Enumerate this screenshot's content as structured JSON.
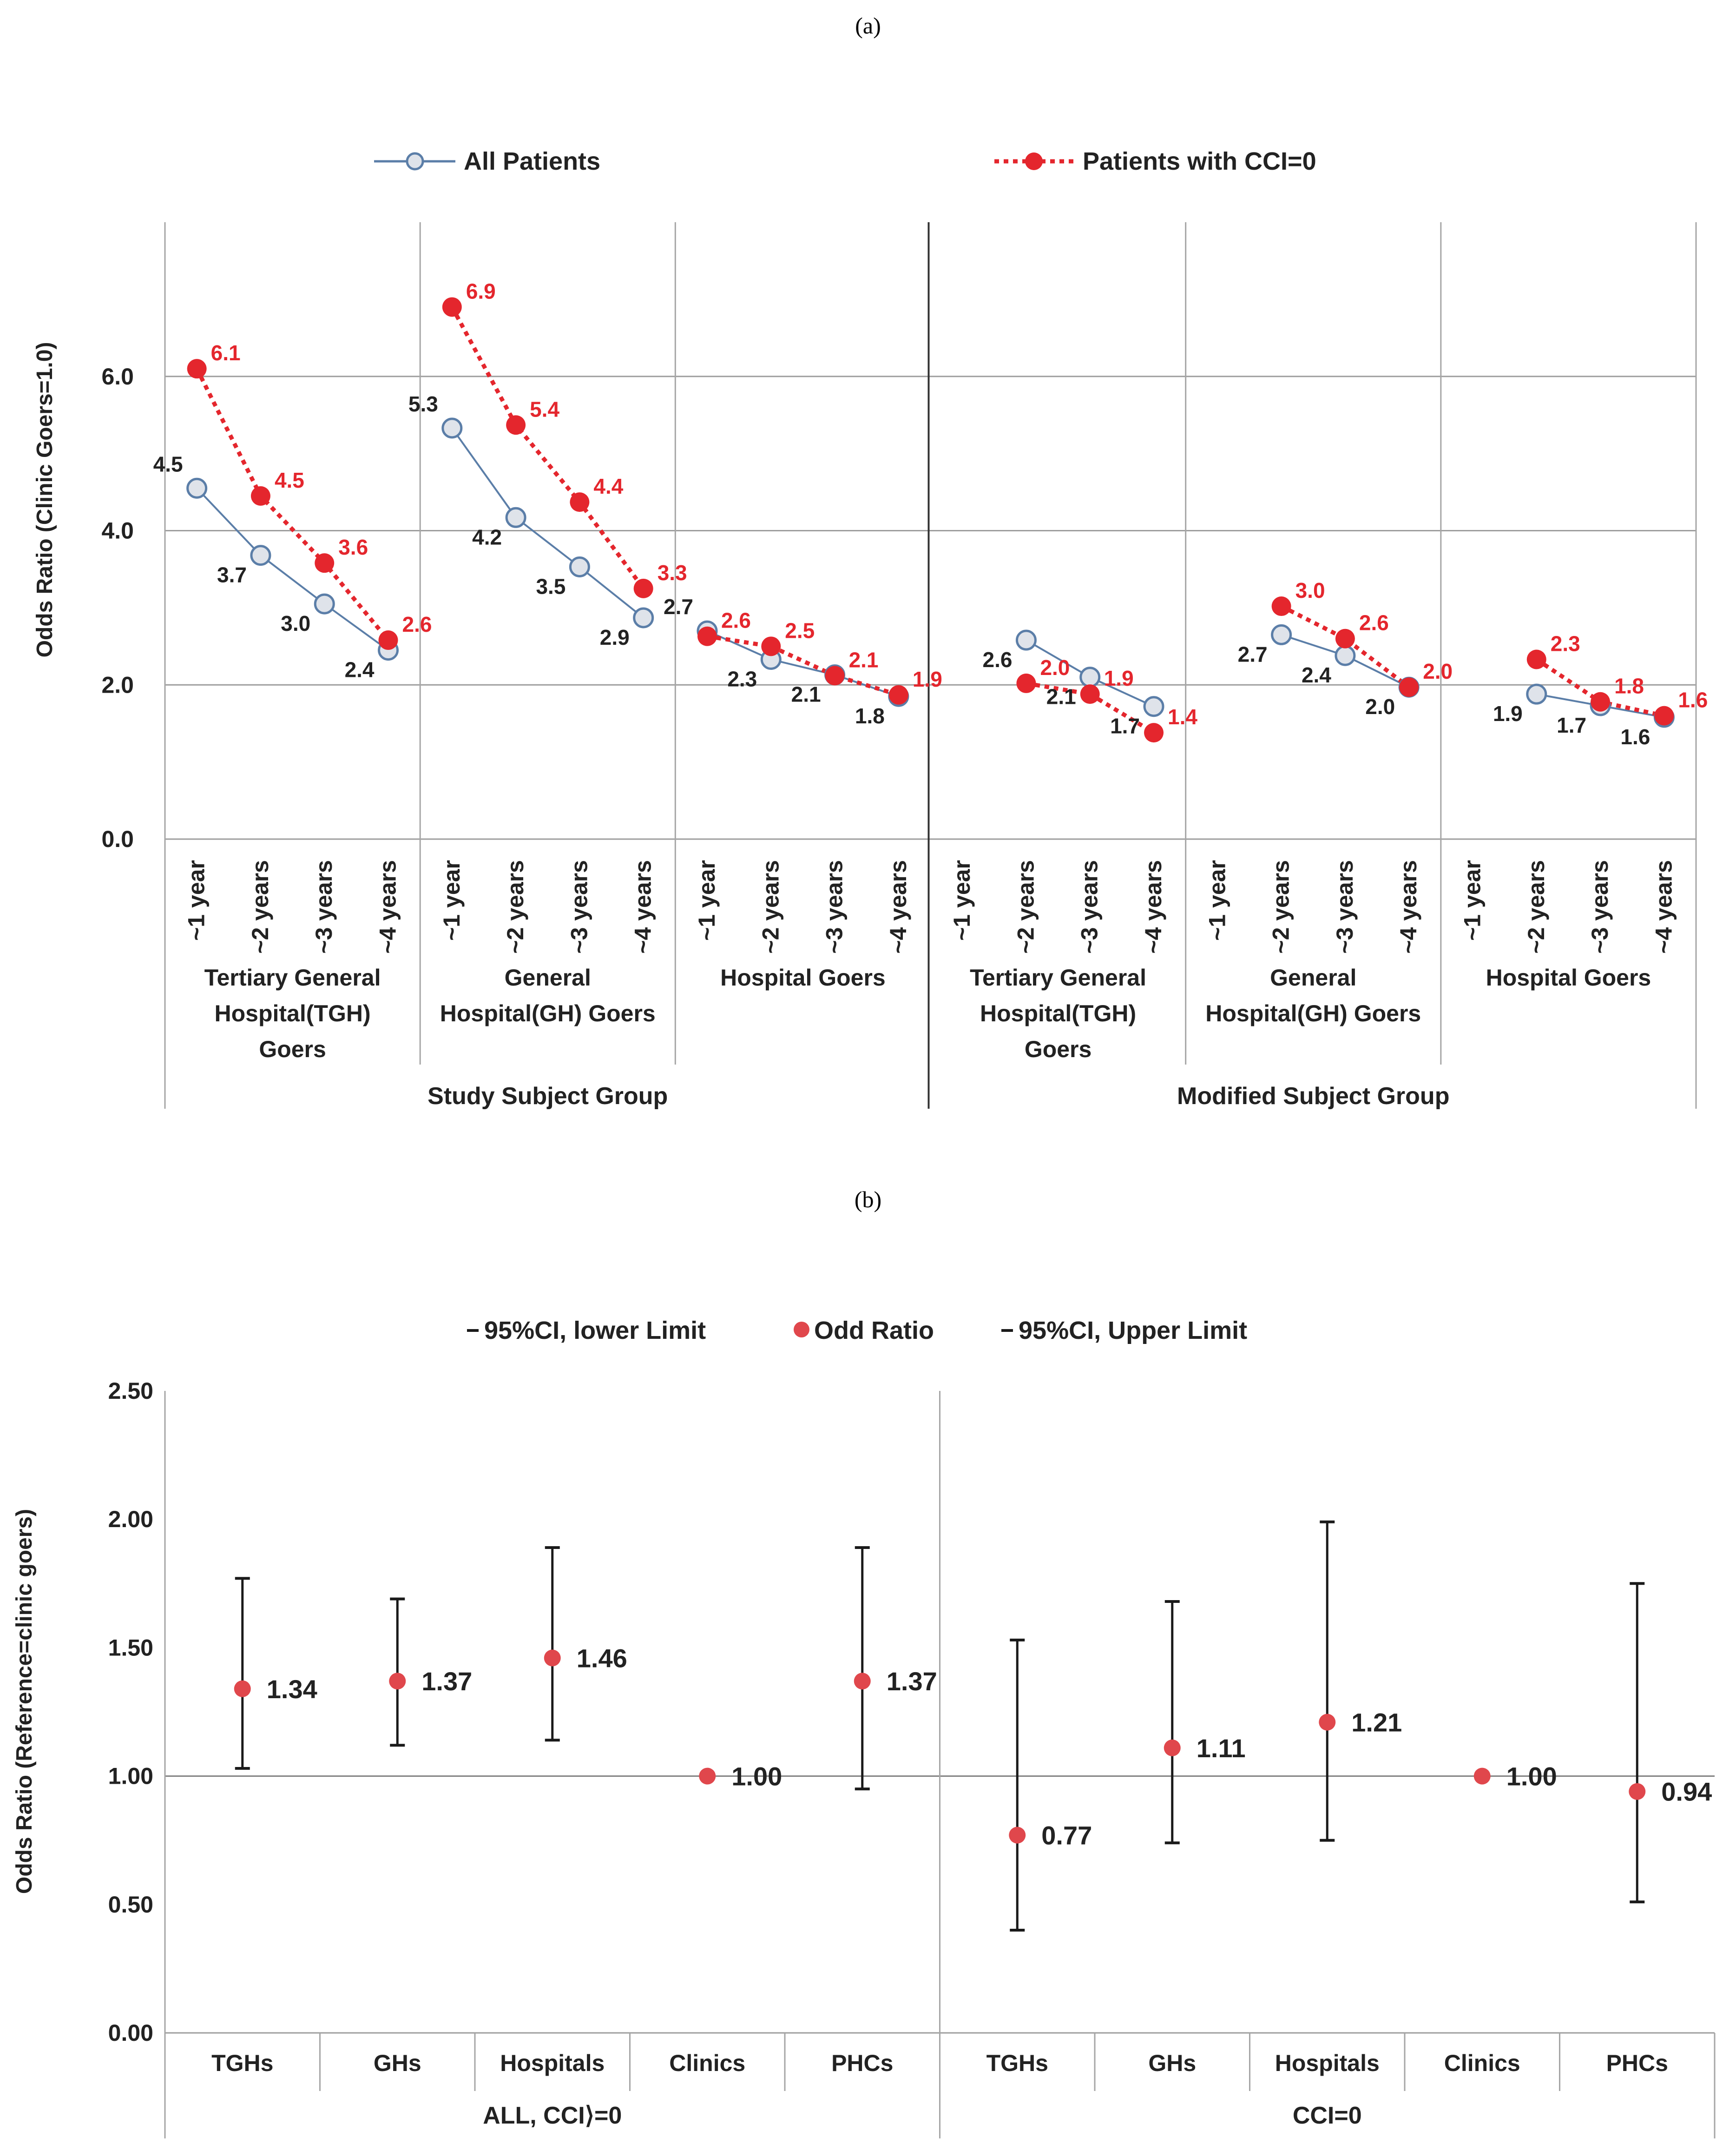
{
  "panel_a": {
    "label": "(a)",
    "legend": {
      "all": "All Patients",
      "cci": "Patients with CCI=0"
    },
    "colors": {
      "all_line": "#5b7ea8",
      "all_marker_fill": "#dfe3ea",
      "cci": "#e4262d"
    },
    "chart_data": {
      "type": "line",
      "ylabel": "Odds Ratio (Clinic Goers=1.0)",
      "ylim": [
        0,
        8
      ],
      "yticks": [
        "0.0",
        "2.0",
        "4.0",
        "6.0"
      ],
      "x_labels": [
        "~1 year",
        "~2 years",
        "~3 years",
        "~4 years"
      ],
      "top_groups": [
        "Study Subject Group",
        "Modified Subject Group"
      ],
      "groups": [
        {
          "label": [
            "Tertiary General",
            "Hospital(TGH)",
            "Goers"
          ],
          "all": [
            4.55,
            3.68,
            3.05,
            2.45
          ],
          "cci": [
            6.1,
            4.45,
            3.58,
            2.58
          ],
          "all_labels": [
            "4.5",
            "3.7",
            "3.0",
            "2.4"
          ],
          "cci_labels": [
            "6.1",
            "4.5",
            "3.6",
            "2.6"
          ]
        },
        {
          "label": [
            "General",
            "Hospital(GH) Goers"
          ],
          "all": [
            5.33,
            4.17,
            3.53,
            2.87
          ],
          "cci": [
            6.9,
            5.37,
            4.37,
            3.25
          ],
          "all_labels": [
            "5.3",
            "4.2",
            "3.5",
            "2.9"
          ],
          "cci_labels": [
            "6.9",
            "5.4",
            "4.4",
            "3.3"
          ]
        },
        {
          "label": [
            "Hospital Goers"
          ],
          "all": [
            2.7,
            2.33,
            2.13,
            1.85
          ],
          "cci": [
            2.63,
            2.5,
            2.12,
            1.87
          ],
          "all_labels": [
            "2.7",
            "2.3",
            "2.1",
            "1.8"
          ],
          "cci_labels": [
            "2.6",
            "2.5",
            "2.1",
            "1.9"
          ]
        },
        {
          "label": [
            "Tertiary General",
            "Hospital(TGH)",
            "Goers"
          ],
          "all": [
            null,
            2.58,
            2.1,
            1.72
          ],
          "cci": [
            null,
            2.02,
            1.88,
            1.38
          ],
          "all_labels": [
            "",
            "2.6",
            "2.1",
            "1.7"
          ],
          "cci_labels": [
            "",
            "2.0",
            "1.9",
            "1.4"
          ]
        },
        {
          "label": [
            "General",
            "Hospital(GH) Goers"
          ],
          "all": [
            null,
            2.65,
            2.38,
            1.97
          ],
          "cci": [
            null,
            3.02,
            2.6,
            1.97
          ],
          "all_labels": [
            "",
            "2.7",
            "2.4",
            "2.0"
          ],
          "cci_labels": [
            "",
            "3.0",
            "2.6",
            "2.0"
          ]
        },
        {
          "label": [
            "Hospital Goers"
          ],
          "all": [
            null,
            1.88,
            1.73,
            1.58
          ],
          "cci": [
            null,
            2.33,
            1.78,
            1.6
          ],
          "all_labels": [
            "",
            "1.9",
            "1.7",
            "1.6"
          ],
          "cci_labels": [
            "",
            "2.3",
            "1.8",
            "1.6"
          ]
        }
      ]
    }
  },
  "panel_b": {
    "label": "(b)",
    "legend": {
      "lower": "95%CI, lower Limit",
      "or": "Odd Ratio",
      "upper": "95%CI, Upper Limit"
    },
    "colors": {
      "point": "#e0474c",
      "whisker": "#1a1a1a"
    },
    "chart_data": {
      "type": "scatter",
      "ylabel": "Odds Ratio (Reference=clinic  goers)",
      "ylim": [
        0,
        2.5
      ],
      "yticks": [
        "0.00",
        "0.50",
        "1.00",
        "1.50",
        "2.00",
        "2.50"
      ],
      "categories": [
        "TGHs",
        "GHs",
        "Hospitals",
        "Clinics",
        "PHCs",
        "TGHs",
        "GHs",
        "Hospitals",
        "Clinics",
        "PHCs"
      ],
      "groups": [
        "ALL, CCI⟩=0",
        "CCI=0"
      ],
      "odds_ratio": [
        1.34,
        1.37,
        1.46,
        1.0,
        1.37,
        0.77,
        1.11,
        1.21,
        1.0,
        0.94
      ],
      "value_labels": [
        "1.34",
        "1.37",
        "1.46",
        "1.00",
        "1.37",
        "0.77",
        "1.11",
        "1.21",
        "1.00",
        "0.94"
      ],
      "ci_lower": [
        1.03,
        1.12,
        1.14,
        null,
        0.95,
        0.4,
        0.74,
        0.75,
        null,
        0.51
      ],
      "ci_upper": [
        1.77,
        1.69,
        1.89,
        null,
        1.89,
        1.53,
        1.68,
        1.99,
        null,
        1.75
      ]
    }
  }
}
